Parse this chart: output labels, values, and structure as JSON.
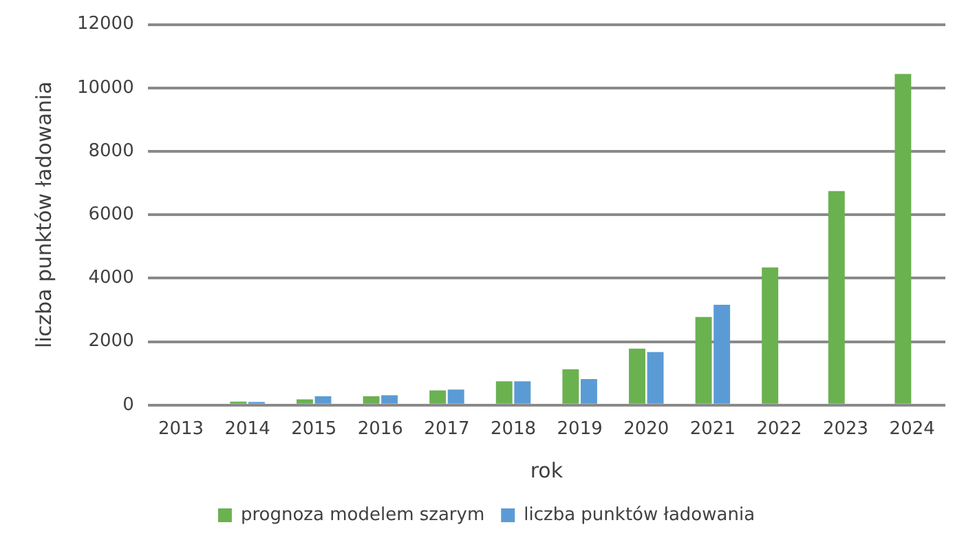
{
  "chart_data": {
    "type": "bar",
    "xlabel": "rok",
    "ylabel": "liczba punktów ładowania",
    "categories": [
      "2013",
      "2014",
      "2015",
      "2016",
      "2017",
      "2018",
      "2019",
      "2020",
      "2021",
      "2022",
      "2023",
      "2024"
    ],
    "series": [
      {
        "name": "prognoza modelem szarym",
        "color": "#6ab150",
        "values": [
          0,
          110,
          180,
          280,
          460,
          750,
          1130,
          1780,
          2780,
          4340,
          6750,
          10440
        ]
      },
      {
        "name": "liczba punktów ładowania",
        "color": "#5b9bd5",
        "values": [
          0,
          100,
          280,
          310,
          490,
          750,
          820,
          1670,
          3160,
          null,
          null,
          null
        ]
      }
    ],
    "ylim": [
      0,
      12000
    ],
    "yticks": [
      0,
      2000,
      4000,
      6000,
      8000,
      10000,
      12000
    ],
    "grid": "y",
    "legend": "bottom"
  }
}
